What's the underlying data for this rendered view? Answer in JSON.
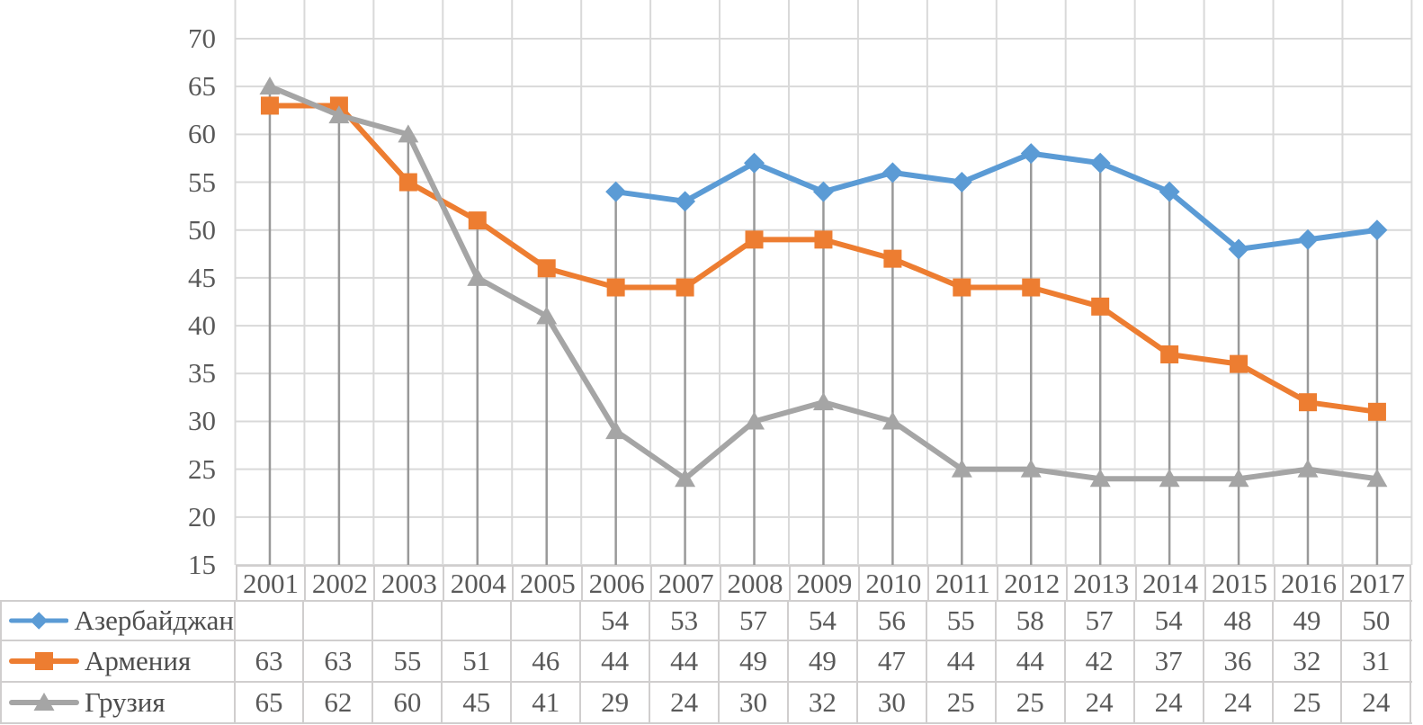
{
  "colors": {
    "azerbaijan": "#5B9BD5",
    "armenia": "#ED7D31",
    "georgia": "#A5A5A5",
    "gridline": "#D9D9D9",
    "drop_line": "#999999",
    "table_border": "#D0CECE",
    "text": "#595959"
  },
  "chart_data": {
    "type": "line",
    "title": "",
    "xlabel": "",
    "ylabel": "",
    "ylim": [
      15,
      74
    ],
    "yticks": [
      15,
      20,
      25,
      30,
      35,
      40,
      45,
      50,
      55,
      60,
      65,
      70
    ],
    "grid": true,
    "drop_lines": true,
    "legend_position": "data-table-left",
    "categories": [
      "2001",
      "2002",
      "2003",
      "2004",
      "2005",
      "2006",
      "2007",
      "2008",
      "2009",
      "2010",
      "2011",
      "2012",
      "2013",
      "2014",
      "2015",
      "2016",
      "2017"
    ],
    "series": [
      {
        "key": "azerbaijan",
        "name": "Азербайджан",
        "color": "#5B9BD5",
        "marker": "diamond",
        "values": [
          null,
          null,
          null,
          null,
          null,
          54,
          53,
          57,
          54,
          56,
          55,
          58,
          57,
          54,
          48,
          49,
          50
        ]
      },
      {
        "key": "armenia",
        "name": "Армения",
        "color": "#ED7D31",
        "marker": "square",
        "values": [
          63,
          63,
          55,
          51,
          46,
          44,
          44,
          49,
          49,
          47,
          44,
          44,
          42,
          37,
          36,
          32,
          31
        ]
      },
      {
        "key": "georgia",
        "name": "Грузия",
        "color": "#A5A5A5",
        "marker": "triangle",
        "values": [
          65,
          62,
          60,
          45,
          41,
          29,
          24,
          30,
          32,
          30,
          25,
          25,
          24,
          24,
          24,
          25,
          24
        ]
      }
    ]
  }
}
